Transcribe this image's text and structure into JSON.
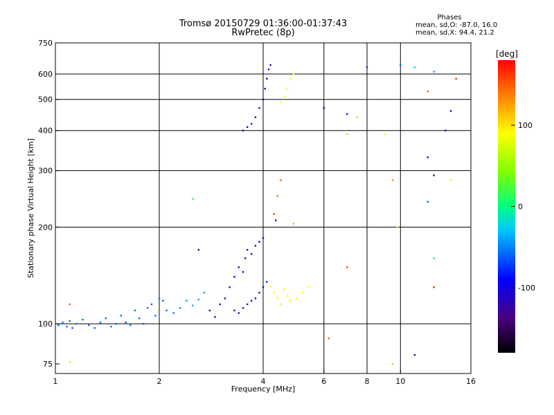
{
  "header": {
    "title": "Tromsø 20150729 01:36:00-01:37:43",
    "subtitle": "RwPretec (8p)",
    "phase_title": "Phases",
    "phase_o": "mean, sd,O: -87.0, 16.0",
    "phase_x": "mean, sd,X:  94.4, 21.2"
  },
  "chart_data": {
    "type": "scatter",
    "xlabel": "Frequency [MHz]",
    "ylabel": "Stationary phase Virtual Height [km]",
    "x_scale": "log",
    "y_scale": "log",
    "xlim": [
      1,
      16
    ],
    "ylim": [
      70,
      750
    ],
    "x_ticks": [
      1,
      2,
      4,
      6,
      8,
      10,
      16
    ],
    "y_ticks": [
      75,
      100,
      200,
      300,
      400,
      500,
      600,
      750
    ],
    "grid_x": [
      2,
      4,
      6,
      8,
      10
    ],
    "grid_y": [
      100,
      200,
      300,
      400,
      500,
      600
    ],
    "colorbar": {
      "label": "[deg]",
      "min": -180,
      "max": 180,
      "ticks": [
        100,
        0,
        -100
      ]
    },
    "points": [
      [
        1.02,
        99,
        -60
      ],
      [
        1.05,
        101,
        -55
      ],
      [
        1.08,
        98,
        -60
      ],
      [
        1.1,
        102,
        -58
      ],
      [
        1.12,
        97,
        -62
      ],
      [
        1.15,
        100,
        -55
      ],
      [
        1.2,
        103,
        -62
      ],
      [
        1.25,
        99,
        -57
      ],
      [
        1.3,
        97,
        -60
      ],
      [
        1.35,
        101,
        -58
      ],
      [
        1.4,
        104,
        -62
      ],
      [
        1.45,
        98,
        -56
      ],
      [
        1.5,
        100,
        -60
      ],
      [
        1.55,
        106,
        -58
      ],
      [
        1.6,
        101,
        -62
      ],
      [
        1.65,
        99,
        -55
      ],
      [
        1.7,
        110,
        -58
      ],
      [
        1.75,
        104,
        -60
      ],
      [
        1.8,
        100,
        -65
      ],
      [
        1.85,
        112,
        -58
      ],
      [
        1.9,
        115,
        -62
      ],
      [
        1.95,
        106,
        -60
      ],
      [
        2.0,
        120,
        -55
      ],
      [
        2.05,
        118,
        -60
      ],
      [
        2.1,
        110,
        -58
      ],
      [
        2.2,
        108,
        -55
      ],
      [
        2.3,
        112,
        -48
      ],
      [
        2.4,
        118,
        -45
      ],
      [
        2.5,
        114,
        -40
      ],
      [
        2.6,
        119,
        -42
      ],
      [
        2.7,
        125,
        -40
      ],
      [
        2.8,
        110,
        -100
      ],
      [
        2.9,
        105,
        -95
      ],
      [
        3.0,
        115,
        -110
      ],
      [
        3.1,
        120,
        -100
      ],
      [
        3.2,
        130,
        -110
      ],
      [
        3.3,
        140,
        -115
      ],
      [
        3.4,
        150,
        -120
      ],
      [
        3.5,
        145,
        -115
      ],
      [
        3.55,
        160,
        -110
      ],
      [
        3.6,
        170,
        -120
      ],
      [
        3.7,
        165,
        -115
      ],
      [
        3.8,
        175,
        -110
      ],
      [
        3.9,
        180,
        -100
      ],
      [
        4.0,
        185,
        -100
      ],
      [
        3.3,
        110,
        -120
      ],
      [
        3.4,
        108,
        -130
      ],
      [
        3.5,
        112,
        -125
      ],
      [
        3.6,
        115,
        -120
      ],
      [
        3.7,
        118,
        -110
      ],
      [
        3.8,
        120,
        -100
      ],
      [
        3.9,
        125,
        -95
      ],
      [
        4.0,
        130,
        -90
      ],
      [
        4.1,
        135,
        -80
      ],
      [
        4.2,
        130,
        90
      ],
      [
        4.3,
        125,
        100
      ],
      [
        4.4,
        120,
        95
      ],
      [
        4.5,
        115,
        90
      ],
      [
        4.6,
        128,
        92
      ],
      [
        4.7,
        122,
        88
      ],
      [
        4.8,
        118,
        95
      ],
      [
        5.0,
        120,
        90
      ],
      [
        5.2,
        125,
        95
      ],
      [
        5.4,
        130,
        88
      ],
      [
        3.5,
        400,
        -110
      ],
      [
        3.6,
        410,
        -115
      ],
      [
        3.7,
        420,
        -108
      ],
      [
        3.8,
        440,
        -110
      ],
      [
        3.9,
        470,
        -105
      ],
      [
        4.0,
        500,
        -112
      ],
      [
        4.05,
        540,
        -108
      ],
      [
        4.1,
        580,
        -115
      ],
      [
        4.15,
        620,
        -110
      ],
      [
        4.2,
        640,
        -112
      ],
      [
        4.5,
        490,
        80
      ],
      [
        4.6,
        510,
        85
      ],
      [
        4.7,
        540,
        88
      ],
      [
        4.8,
        580,
        90
      ],
      [
        4.9,
        600,
        92
      ],
      [
        4.3,
        220,
        160
      ],
      [
        4.4,
        250,
        140
      ],
      [
        4.5,
        280,
        150
      ],
      [
        4.35,
        210,
        -120
      ],
      [
        2.5,
        245,
        10
      ],
      [
        2.6,
        170,
        -110
      ],
      [
        6.0,
        470,
        -110
      ],
      [
        7.0,
        450,
        -100
      ],
      [
        7.5,
        440,
        110
      ],
      [
        7.0,
        390,
        110
      ],
      [
        9.0,
        390,
        90
      ],
      [
        9.5,
        280,
        130
      ],
      [
        9.8,
        200,
        100
      ],
      [
        12.0,
        330,
        -100
      ],
      [
        12.5,
        290,
        -95
      ],
      [
        14.0,
        280,
        95
      ],
      [
        14.5,
        580,
        170
      ],
      [
        12.0,
        530,
        150
      ],
      [
        13.5,
        400,
        -100
      ],
      [
        14.0,
        460,
        -90
      ],
      [
        8.0,
        630,
        -80
      ],
      [
        10.0,
        640,
        -60
      ],
      [
        11.0,
        630,
        -30
      ],
      [
        12.5,
        610,
        -40
      ],
      [
        12.0,
        240,
        -60
      ],
      [
        12.5,
        160,
        -20
      ],
      [
        12.5,
        130,
        170
      ],
      [
        6.2,
        90,
        150
      ],
      [
        7.0,
        150,
        160
      ],
      [
        9.5,
        75,
        50
      ],
      [
        11.0,
        80,
        -140
      ],
      [
        1.1,
        115,
        150
      ],
      [
        1.1,
        76,
        100
      ],
      [
        4.9,
        205,
        120
      ]
    ]
  }
}
